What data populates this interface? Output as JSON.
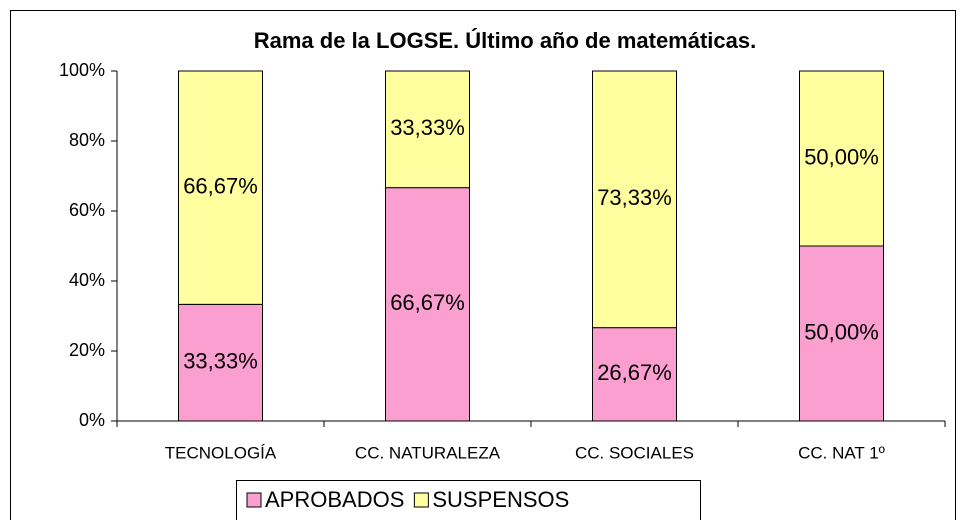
{
  "chart_data": {
    "type": "bar",
    "stacked": true,
    "title": "Rama de la LOGSE. Último año de matemáticas.",
    "categories": [
      "TECNOLOGÍA",
      "CC. NATURALEZA",
      "CC. SOCIALES",
      "CC. NAT 1º"
    ],
    "series": [
      {
        "name": "APROBADOS",
        "color": "#fa9fd0",
        "values": [
          33.33,
          66.67,
          26.67,
          50.0
        ],
        "value_labels": [
          "33,33%",
          "66,67%",
          "26,67%",
          "50,00%"
        ]
      },
      {
        "name": "SUSPENSOS",
        "color": "#ffffa0",
        "values": [
          66.67,
          33.33,
          73.33,
          50.0
        ],
        "value_labels": [
          "66,67%",
          "33,33%",
          "73,33%",
          "50,00%"
        ]
      }
    ],
    "ylim": [
      0,
      100
    ],
    "yticks": [
      {
        "value": 0,
        "label": "0%"
      },
      {
        "value": 20,
        "label": "20%"
      },
      {
        "value": 40,
        "label": "40%"
      },
      {
        "value": 60,
        "label": "60%"
      },
      {
        "value": 80,
        "label": "80%"
      },
      {
        "value": 100,
        "label": "100%"
      }
    ],
    "legend": "bottom"
  }
}
